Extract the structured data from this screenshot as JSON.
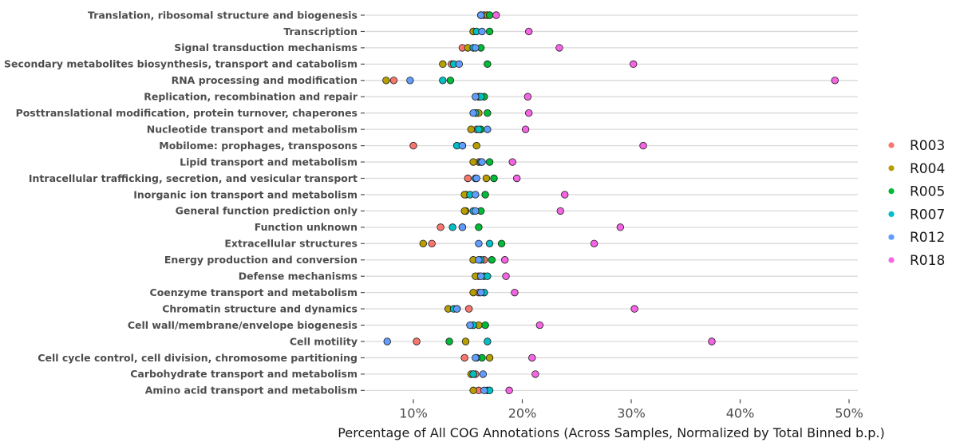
{
  "chart_data": {
    "type": "scatter",
    "title": "",
    "xlabel": "Percentage of All COG Annotations (Across Samples, Normalized by Total Binned b.p.)",
    "ylabel": "",
    "xlim": [
      0.055,
      0.51
    ],
    "x_ticks": [
      {
        "value": 0.1,
        "label": "10%"
      },
      {
        "value": 0.2,
        "label": "20%"
      },
      {
        "value": 0.3,
        "label": "30%"
      },
      {
        "value": 0.4,
        "label": "40%"
      },
      {
        "value": 0.5,
        "label": "50%"
      }
    ],
    "grid": "horizontal",
    "legend_position": "right",
    "categories": [
      "Translation, ribosomal structure and biogenesis",
      "Transcription",
      "Signal transduction mechanisms",
      "Secondary metabolites biosynthesis, transport and catabolism",
      "RNA processing and modification",
      "Replication, recombination and repair",
      "Posttranslational modification, protein turnover, chaperones",
      "Nucleotide transport and metabolism",
      "Mobilome: prophages, transposons",
      "Lipid transport and metabolism",
      "Intracellular trafficking, secretion, and vesicular transport",
      "Inorganic ion transport and metabolism",
      "General function prediction only",
      "Function unknown",
      "Extracellular structures",
      "Energy production and conversion",
      "Defense mechanisms",
      "Coenzyme transport and metabolism",
      "Chromatin structure and dynamics",
      "Cell wall/membrane/envelope biogenesis",
      "Cell motility",
      "Cell cycle control, cell division, chromosome partitioning",
      "Carbohydrate transport and metabolism",
      "Amino acid transport and metabolism"
    ],
    "series": [
      {
        "name": "R003",
        "color": "#F8766D",
        "values": [
          0.165,
          0.155,
          0.145,
          0.135,
          0.082,
          0.16,
          0.158,
          0.158,
          0.1,
          0.16,
          0.15,
          0.148,
          0.148,
          0.125,
          0.117,
          0.165,
          0.16,
          0.16,
          0.151,
          0.155,
          0.103,
          0.147,
          0.157,
          0.16
        ]
      },
      {
        "name": "R004",
        "color": "#B79F00",
        "values": [
          0.168,
          0.155,
          0.15,
          0.127,
          0.075,
          0.16,
          0.16,
          0.153,
          0.158,
          0.155,
          0.167,
          0.147,
          0.147,
          0.145,
          0.109,
          0.155,
          0.157,
          0.155,
          0.132,
          0.16,
          0.148,
          0.17,
          0.153,
          0.155
        ]
      },
      {
        "name": "R005",
        "color": "#00BA38",
        "values": [
          0.17,
          0.17,
          0.162,
          0.168,
          0.134,
          0.165,
          0.168,
          0.162,
          0.145,
          0.17,
          0.174,
          0.166,
          0.162,
          0.16,
          0.181,
          0.172,
          0.165,
          0.165,
          0.14,
          0.166,
          0.133,
          0.163,
          0.155,
          0.168
        ]
      },
      {
        "name": "R007",
        "color": "#00BFC4",
        "values": [
          0.162,
          0.158,
          0.155,
          0.137,
          0.127,
          0.162,
          0.157,
          0.16,
          0.14,
          0.162,
          0.157,
          0.152,
          0.155,
          0.136,
          0.17,
          0.162,
          0.168,
          0.165,
          0.137,
          0.155,
          0.168,
          0.158,
          0.155,
          0.17
        ]
      },
      {
        "name": "R012",
        "color": "#619CFF",
        "values": [
          0.162,
          0.163,
          0.157,
          0.142,
          0.097,
          0.157,
          0.155,
          0.168,
          0.145,
          0.163,
          0.158,
          0.157,
          0.157,
          0.145,
          0.16,
          0.16,
          0.162,
          0.162,
          0.14,
          0.152,
          0.076,
          0.157,
          0.164,
          0.165
        ]
      },
      {
        "name": "R018",
        "color": "#F564E3",
        "values": [
          0.176,
          0.206,
          0.234,
          0.302,
          0.487,
          0.205,
          0.206,
          0.203,
          0.311,
          0.191,
          0.195,
          0.239,
          0.235,
          0.29,
          0.266,
          0.184,
          0.185,
          0.193,
          0.303,
          0.216,
          0.374,
          0.209,
          0.212,
          0.188
        ]
      }
    ]
  }
}
